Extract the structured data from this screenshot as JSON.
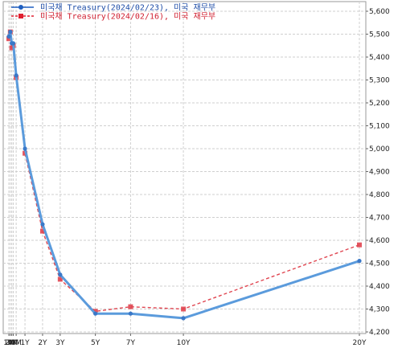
{
  "chart_data": {
    "type": "line",
    "categories": [
      "1M",
      "2M",
      "3M",
      "4M",
      "6M",
      "1Y",
      "2Y",
      "3Y",
      "5Y",
      "7Y",
      "10Y",
      "20Y"
    ],
    "x": [
      1,
      2,
      3,
      4,
      6,
      12,
      24,
      36,
      60,
      84,
      120,
      240
    ],
    "y_ticks": [
      "5,600",
      "5,500",
      "5,400",
      "5,300",
      "5,200",
      "5,100",
      "5,000",
      "4,900",
      "4,800",
      "4,700",
      "4,600",
      "4,500",
      "4,400",
      "4,300",
      "4,200"
    ],
    "ylim": [
      4.2,
      5.6
    ],
    "grid": true,
    "legend_position": "top-left",
    "series": [
      {
        "name": "미국채 Treasury(2024/02/23), 미국 재무부",
        "color": "#5b9bdc",
        "style": "solid",
        "marker": "circle",
        "values": [
          5.49,
          5.51,
          5.46,
          5.46,
          5.32,
          5.0,
          4.67,
          4.45,
          4.28,
          4.28,
          4.26,
          4.51
        ]
      },
      {
        "name": "미국채 Treasury(2024/02/16), 미국 재무부",
        "color": "#e04550",
        "style": "dashed",
        "marker": "square",
        "values": [
          5.48,
          5.51,
          5.44,
          5.45,
          5.31,
          4.98,
          4.64,
          4.43,
          4.29,
          4.31,
          4.3,
          4.58
        ]
      }
    ]
  }
}
